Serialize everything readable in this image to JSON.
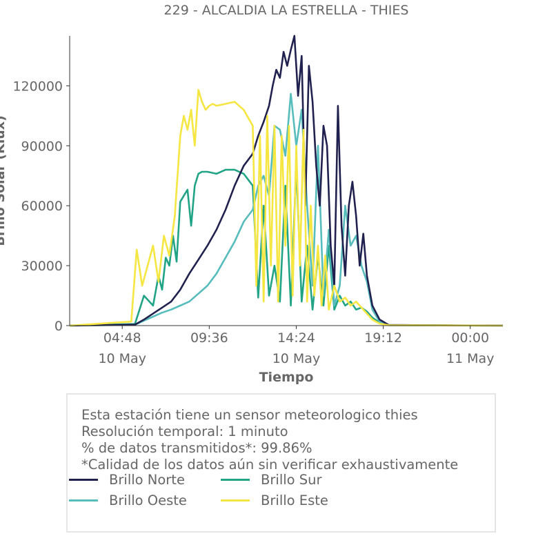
{
  "chart_data": {
    "type": "line",
    "title": "229 - ALCALDIA LA ESTRELLA - THIES",
    "xlabel": "Tiempo",
    "ylabel": "Brillo Solar (Klux)",
    "ylim": [
      0,
      145000
    ],
    "yticks": [
      0,
      30000,
      60000,
      90000,
      120000
    ],
    "ytick_labels": [
      "0",
      "30000",
      "60000",
      "90000",
      "120000"
    ],
    "xlim_hours": [
      1.9,
      25.8
    ],
    "xticks_hours": [
      4.8,
      9.6,
      14.4,
      19.2,
      24.0
    ],
    "xtick_labels": [
      {
        "time": "04:48",
        "date": "10 May"
      },
      {
        "time": "09:36",
        "date": ""
      },
      {
        "time": "14:24",
        "date": "10 May"
      },
      {
        "time": "19:12",
        "date": ""
      },
      {
        "time": "00:00",
        "date": "11 May"
      }
    ],
    "grid": false,
    "legend_position": "bottom-left",
    "series": [
      {
        "name": "Brillo Norte",
        "color": "#20214f",
        "x": [
          1.9,
          5.5,
          6.0,
          6.5,
          7.0,
          7.5,
          8.0,
          8.5,
          9.0,
          9.5,
          10.0,
          10.5,
          11.0,
          11.5,
          12.0,
          12.3,
          12.6,
          12.9,
          13.1,
          13.3,
          13.5,
          13.7,
          13.9,
          14.1,
          14.3,
          14.5,
          14.7,
          14.9,
          15.1,
          15.3,
          15.5,
          15.7,
          15.9,
          16.1,
          16.3,
          16.5,
          16.7,
          16.9,
          17.1,
          17.3,
          17.5,
          17.7,
          17.9,
          18.1,
          18.3,
          18.6,
          19.0,
          19.5,
          25.8
        ],
        "y": [
          0,
          500,
          3000,
          6000,
          9000,
          12000,
          18000,
          26000,
          33000,
          40000,
          48000,
          58000,
          70000,
          80000,
          86000,
          95000,
          102000,
          110000,
          120000,
          128000,
          124000,
          137000,
          130000,
          138000,
          145000,
          115000,
          135000,
          60000,
          130000,
          112000,
          80000,
          60000,
          100000,
          90000,
          40000,
          20000,
          110000,
          50000,
          25000,
          60000,
          72000,
          55000,
          30000,
          46000,
          25000,
          10000,
          3000,
          300,
          0
        ]
      },
      {
        "name": "Brillo Sur",
        "color": "#21a386",
        "x": [
          1.9,
          5.5,
          6.0,
          6.5,
          6.8,
          7.0,
          7.2,
          7.4,
          7.6,
          7.8,
          8.0,
          8.2,
          8.4,
          8.6,
          8.8,
          9.0,
          9.2,
          9.5,
          10.0,
          10.5,
          11.0,
          11.5,
          12.0,
          12.3,
          12.6,
          12.9,
          13.2,
          13.5,
          13.8,
          14.1,
          14.4,
          14.7,
          15.0,
          15.3,
          15.6,
          15.9,
          16.2,
          16.5,
          16.8,
          17.1,
          17.4,
          17.7,
          18.0,
          18.3,
          18.6,
          19.0,
          19.5,
          25.8
        ],
        "y": [
          0,
          800,
          15000,
          10000,
          25000,
          18000,
          34000,
          30000,
          45000,
          32000,
          62000,
          65000,
          68000,
          50000,
          70000,
          76000,
          77000,
          77000,
          76000,
          78000,
          78000,
          76000,
          70000,
          14000,
          60000,
          15000,
          30000,
          12000,
          70000,
          10000,
          80000,
          12000,
          40000,
          8000,
          35000,
          10000,
          40000,
          8000,
          15000,
          10000,
          12000,
          8000,
          9000,
          7000,
          4000,
          1500,
          200,
          0
        ]
      },
      {
        "name": "Brillo Oeste",
        "color": "#56bcbc",
        "x": [
          1.9,
          5.5,
          6.0,
          6.5,
          7.0,
          7.5,
          8.0,
          8.5,
          9.0,
          9.5,
          10.0,
          10.5,
          11.0,
          11.5,
          12.0,
          12.3,
          12.6,
          12.9,
          13.2,
          13.5,
          13.8,
          14.1,
          14.4,
          14.7,
          15.0,
          15.3,
          15.6,
          15.9,
          16.2,
          16.5,
          16.8,
          17.1,
          17.4,
          17.7,
          18.0,
          18.3,
          18.6,
          19.0,
          19.5,
          25.8
        ],
        "y": [
          0,
          400,
          2500,
          4500,
          6500,
          8000,
          10000,
          12000,
          16000,
          20000,
          26000,
          34000,
          42000,
          52000,
          58000,
          70000,
          75000,
          65000,
          100000,
          98000,
          85000,
          116000,
          90000,
          108000,
          60000,
          20000,
          90000,
          15000,
          48000,
          10000,
          20000,
          60000,
          40000,
          45000,
          30000,
          22000,
          8000,
          2000,
          300,
          0
        ]
      },
      {
        "name": "Brillo Este",
        "color": "#f5e642",
        "x": [
          1.9,
          5.3,
          5.6,
          5.9,
          6.2,
          6.5,
          6.8,
          7.1,
          7.4,
          7.7,
          8.0,
          8.2,
          8.4,
          8.6,
          8.8,
          9.0,
          9.2,
          9.4,
          9.6,
          9.8,
          10.0,
          10.5,
          11.0,
          11.5,
          12.0,
          12.2,
          12.4,
          12.6,
          12.8,
          13.0,
          13.2,
          13.4,
          13.6,
          13.8,
          14.0,
          14.2,
          14.4,
          14.6,
          14.8,
          15.0,
          15.2,
          15.4,
          15.6,
          15.8,
          16.0,
          16.2,
          16.5,
          16.8,
          17.1,
          17.4,
          17.7,
          18.0,
          18.3,
          18.6,
          19.0,
          19.5,
          25.8
        ],
        "y": [
          0,
          2000,
          38000,
          20000,
          30000,
          40000,
          22000,
          45000,
          35000,
          55000,
          95000,
          105000,
          98000,
          108000,
          90000,
          118000,
          112000,
          108000,
          110000,
          111000,
          110000,
          111000,
          112000,
          108000,
          100000,
          20000,
          95000,
          12000,
          105000,
          30000,
          100000,
          12000,
          95000,
          40000,
          100000,
          15000,
          90000,
          30000,
          98000,
          12000,
          60000,
          15000,
          40000,
          10000,
          35000,
          8000,
          20000,
          12000,
          14000,
          10000,
          12000,
          9000,
          6000,
          3000,
          1000,
          200,
          0
        ]
      }
    ]
  },
  "info": {
    "lines": [
      "Esta estación tiene un sensor meteorologico thies",
      "Resolución temporal: 1 minuto",
      "% de datos transmitidos*: 99.86%",
      "*Calidad de los datos aún sin verificar exhaustivamente"
    ]
  }
}
